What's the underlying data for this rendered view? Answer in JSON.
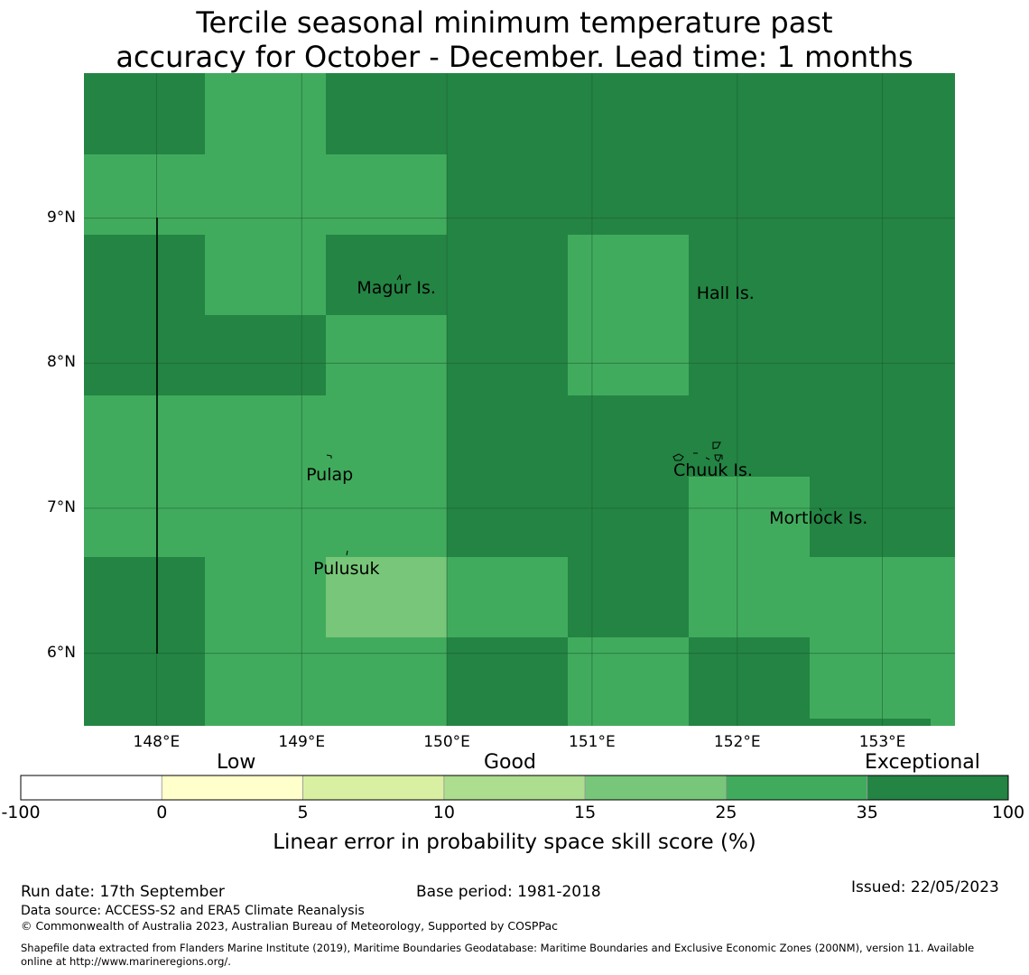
{
  "title": {
    "line1": "Tercile seasonal minimum temperature past",
    "line2": "accuracy for October - December. Lead time: 1 months"
  },
  "map": {
    "lon_range": [
      147.5,
      153.5
    ],
    "lat_range": [
      5.5,
      10.0
    ],
    "x_ticks": [
      {
        "value": 148,
        "label": "148°E"
      },
      {
        "value": 149,
        "label": "149°E"
      },
      {
        "value": 150,
        "label": "150°E"
      },
      {
        "value": 151,
        "label": "151°E"
      },
      {
        "value": 152,
        "label": "152°E"
      },
      {
        "value": 153,
        "label": "153°E"
      }
    ],
    "y_ticks": [
      {
        "value": 9,
        "label": "9°N"
      },
      {
        "value": 8,
        "label": "8°N"
      },
      {
        "value": 7,
        "label": "7°N"
      },
      {
        "value": 6,
        "label": "6°N"
      }
    ],
    "places": [
      {
        "name": "Magur Is.",
        "lon": 149.38,
        "lat": 8.52
      },
      {
        "name": "Hall Is.",
        "lon": 151.72,
        "lat": 8.48
      },
      {
        "name": "Pulap",
        "lon": 149.03,
        "lat": 7.23
      },
      {
        "name": "Chuuk Is.",
        "lon": 151.56,
        "lat": 7.26
      },
      {
        "name": "Mortlock Is.",
        "lon": 152.22,
        "lat": 6.93
      },
      {
        "name": "Pulusuk",
        "lon": 149.08,
        "lat": 6.58
      }
    ],
    "colors": {
      "exceptional": "#238443",
      "good35": "#41ab5d",
      "good25": "#78c679",
      "grid": "#1f5e30"
    }
  },
  "colorbar": {
    "categories": [
      {
        "name": "Low"
      },
      {
        "name": "Good"
      },
      {
        "name": "Exceptional"
      }
    ],
    "tick_labels": [
      "-100",
      "0",
      "5",
      "10",
      "15",
      "25",
      "35",
      "100"
    ],
    "colors": [
      "#ffffff",
      "#ffffcc",
      "#d9f0a3",
      "#addd8e",
      "#78c679",
      "#41ab5d",
      "#238443"
    ],
    "axis_label": "Linear error in probability space skill score (%)"
  },
  "footer": {
    "run_date": "Run date: 17th September",
    "base_period": "Base period: 1981-2018",
    "issued": "Issued: 22/05/2023",
    "data_source": "Data source: ACCESS-S2 and ERA5 Climate Reanalysis",
    "copyright": "© Commonwealth of Australia 2023, Australian Bureau of Meteorology, Supported by COSPPac",
    "shapefile_line1": "Shapefile data extracted from Flanders Marine Institute (2019), Maritime Boundaries Geodatabase: Maritime Boundaries and Exclusive Economic Zones (200NM), version 11. Available",
    "shapefile_line2": "online at http://www.marineregions.org/."
  }
}
